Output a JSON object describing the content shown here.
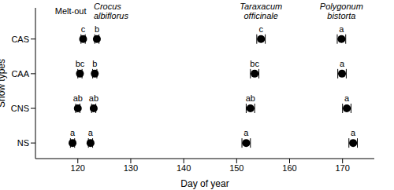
{
  "chart_data": {
    "type": "scatter",
    "x_label": "Day of year",
    "y_label": "Snow types",
    "categories": [
      "CAS",
      "CAA",
      "CNS",
      "NS"
    ],
    "xlim": [
      112,
      176
    ],
    "xticks": [
      120,
      130,
      140,
      150,
      160,
      170
    ],
    "grid": false,
    "marker": "circle",
    "series": [
      {
        "name": "Melt-out",
        "color": "#000000",
        "values": [
          121.0,
          120.4,
          120.0,
          119.0
        ],
        "errors": [
          0.4,
          0.4,
          0.4,
          0.4
        ],
        "letters": [
          "c",
          "bc",
          "ab",
          "a"
        ]
      },
      {
        "name": "Crocus albiflorus",
        "color": "#000000",
        "values": [
          123.6,
          123.2,
          123.0,
          122.4
        ],
        "errors": [
          0.4,
          0.4,
          0.4,
          0.4
        ],
        "letters": [
          "b",
          "b",
          "ab",
          "a"
        ]
      },
      {
        "name": "Taraxacum officinale",
        "color": "#000000",
        "values": [
          154.6,
          153.4,
          152.6,
          151.8
        ],
        "errors": [
          0.8,
          0.8,
          0.8,
          0.8
        ],
        "letters": [
          "c",
          "bc",
          "ab",
          "a"
        ]
      },
      {
        "name": "Polygonum bistorta",
        "color": "#000000",
        "values": [
          169.8,
          169.9,
          170.8,
          172.0
        ],
        "errors": [
          0.8,
          0.8,
          0.8,
          0.8
        ],
        "letters": [
          "a",
          "a",
          "a",
          "a"
        ]
      }
    ]
  }
}
